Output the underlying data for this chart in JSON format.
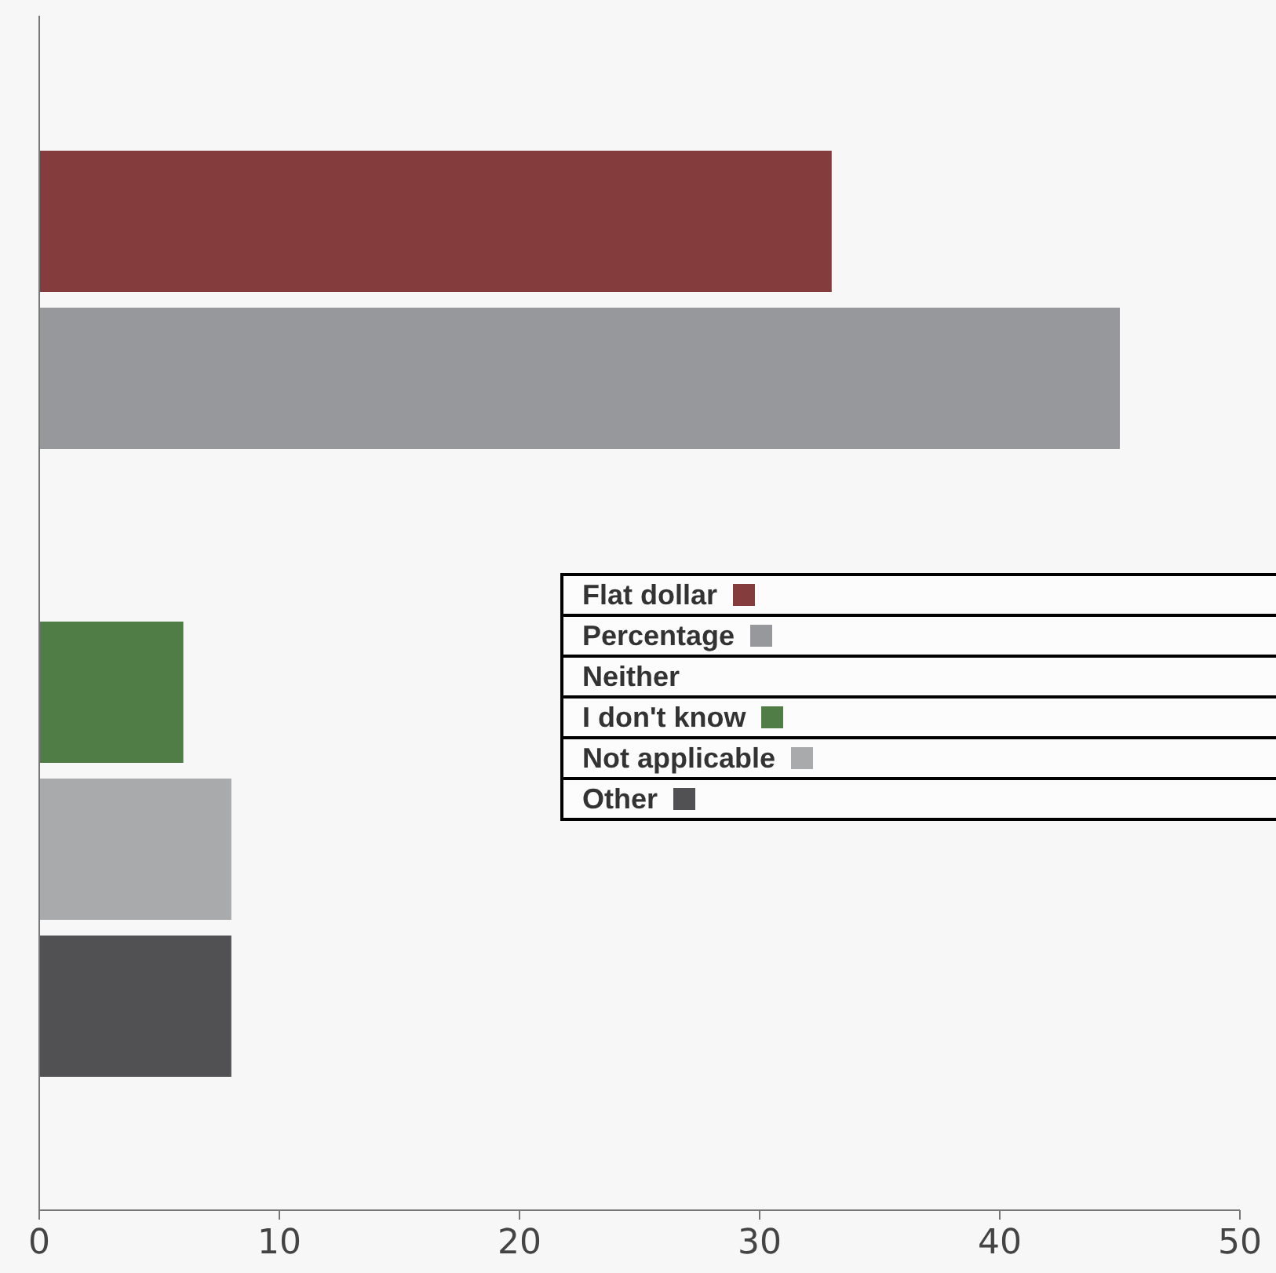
{
  "chart_data": {
    "type": "bar",
    "orientation": "horizontal",
    "categories": [
      null
    ],
    "series": [
      {
        "name": "Flat dollar",
        "color": "#843c3c",
        "values": [
          33
        ]
      },
      {
        "name": "Percentage",
        "color": "#97989c",
        "values": [
          45
        ]
      },
      {
        "name": "Neither",
        "values": [
          0
        ]
      },
      {
        "name": "I don't know",
        "color": "#4f7d45",
        "values": [
          6
        ]
      },
      {
        "name": "Not applicable",
        "color": "#a9aaac",
        "values": [
          8
        ]
      },
      {
        "name": "Other",
        "color": "#515153",
        "values": [
          8
        ]
      }
    ],
    "xlim": [
      0,
      50
    ],
    "xticks": [
      0,
      10,
      20,
      30,
      40,
      50
    ],
    "tick_labels": "x",
    "grid": false,
    "legend": "right"
  }
}
